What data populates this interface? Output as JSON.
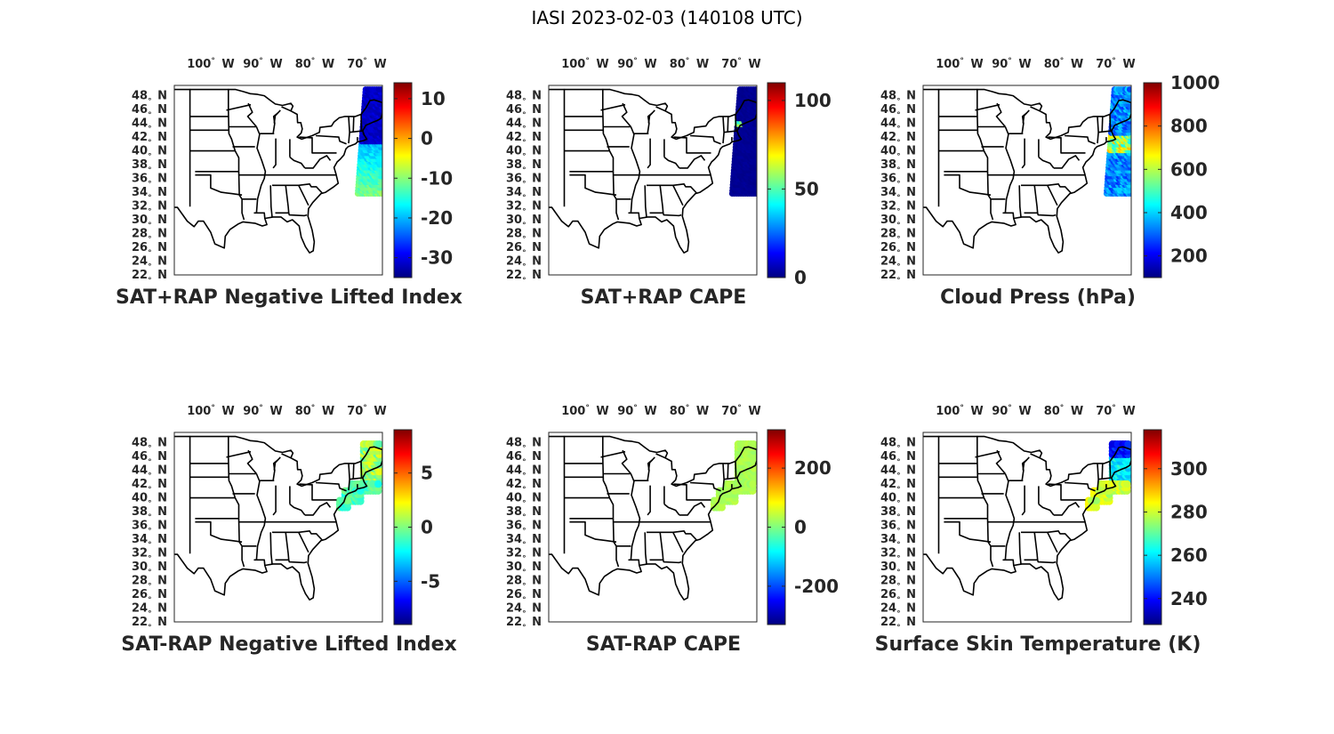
{
  "figure_title": "IASI 2023-02-03 (140108 UTC)",
  "lon_ticks": [
    {
      "value": -100,
      "label": "100",
      "dir": "W"
    },
    {
      "value": -90,
      "label": "90",
      "dir": "W"
    },
    {
      "value": -80,
      "label": "80",
      "dir": "W"
    },
    {
      "value": -70,
      "label": "70",
      "dir": "W"
    }
  ],
  "lat_ticks": [
    {
      "value": 48,
      "label": "48",
      "dir": "N"
    },
    {
      "value": 46,
      "label": "46",
      "dir": "N"
    },
    {
      "value": 44,
      "label": "44",
      "dir": "N"
    },
    {
      "value": 42,
      "label": "42",
      "dir": "N"
    },
    {
      "value": 40,
      "label": "40",
      "dir": "N"
    },
    {
      "value": 38,
      "label": "38",
      "dir": "N"
    },
    {
      "value": 36,
      "label": "36",
      "dir": "N"
    },
    {
      "value": 34,
      "label": "34",
      "dir": "N"
    },
    {
      "value": 32,
      "label": "32",
      "dir": "N"
    },
    {
      "value": 30,
      "label": "30",
      "dir": "N"
    },
    {
      "value": 28,
      "label": "28",
      "dir": "N"
    },
    {
      "value": 26,
      "label": "26",
      "dir": "N"
    },
    {
      "value": 24,
      "label": "24",
      "dir": "N"
    },
    {
      "value": 22,
      "label": "22",
      "dir": "N"
    }
  ],
  "map_extent": {
    "lon": [
      -107,
      -67
    ],
    "lat": [
      22,
      49.5
    ]
  },
  "colormap": "jet",
  "panels": [
    {
      "title": "SAT+RAP Negative Lifted Index",
      "clim": [
        -35,
        14
      ],
      "ticks": [
        {
          "value": 10,
          "label": "10"
        },
        {
          "value": 0,
          "label": "0"
        },
        {
          "value": -10,
          "label": "-10"
        },
        {
          "value": -20,
          "label": "-20"
        },
        {
          "value": -30,
          "label": "-30"
        }
      ],
      "swath": "wide",
      "pattern": "nli_plus"
    },
    {
      "title": "SAT+RAP CAPE",
      "clim": [
        0,
        110
      ],
      "ticks": [
        {
          "value": 100,
          "label": "100"
        },
        {
          "value": 50,
          "label": "50"
        },
        {
          "value": 0,
          "label": "0"
        }
      ],
      "swath": "wide",
      "pattern": "cape_plus"
    },
    {
      "title": "Cloud Press (hPa)",
      "clim": [
        100,
        1000
      ],
      "ticks": [
        {
          "value": 1000,
          "label": "1000"
        },
        {
          "value": 800,
          "label": "800"
        },
        {
          "value": 600,
          "label": "600"
        },
        {
          "value": 400,
          "label": "400"
        },
        {
          "value": 200,
          "label": "200"
        }
      ],
      "swath": "wide",
      "pattern": "cloud"
    },
    {
      "title": "SAT-RAP Negative Lifted Index",
      "clim": [
        -9,
        9
      ],
      "ticks": [
        {
          "value": 5,
          "label": "5"
        },
        {
          "value": 0,
          "label": "0"
        },
        {
          "value": -5,
          "label": "-5"
        }
      ],
      "swath": "coastal",
      "pattern": "nli_minus"
    },
    {
      "title": "SAT-RAP CAPE",
      "clim": [
        -330,
        330
      ],
      "ticks": [
        {
          "value": 200,
          "label": "200"
        },
        {
          "value": 0,
          "label": "0"
        },
        {
          "value": -200,
          "label": "-200"
        }
      ],
      "swath": "coastal",
      "pattern": "cape_minus"
    },
    {
      "title": "Surface Skin Temperature (K)",
      "clim": [
        228,
        318
      ],
      "ticks": [
        {
          "value": 300,
          "label": "300"
        },
        {
          "value": 280,
          "label": "280"
        },
        {
          "value": 260,
          "label": "260"
        },
        {
          "value": 240,
          "label": "240"
        }
      ],
      "swath": "coastal",
      "pattern": "skin"
    }
  ]
}
